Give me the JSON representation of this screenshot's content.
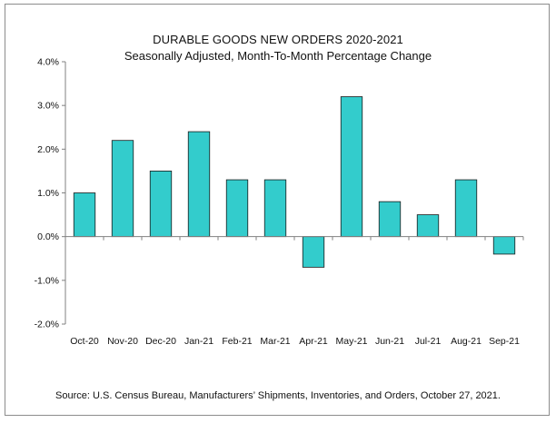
{
  "chart_data": {
    "type": "bar",
    "title": "DURABLE GOODS NEW ORDERS 2020-2021",
    "subtitle": "Seasonally Adjusted,  Month-To-Month Percentage Change",
    "categories": [
      "Oct-20",
      "Nov-20",
      "Dec-20",
      "Jan-21",
      "Feb-21",
      "Mar-21",
      "Apr-21",
      "May-21",
      "Jun-21",
      "Jul-21",
      "Aug-21",
      "Sep-21"
    ],
    "values": [
      1.0,
      2.2,
      1.5,
      2.4,
      1.3,
      1.3,
      -0.7,
      3.2,
      0.8,
      0.5,
      1.3,
      -0.4
    ],
    "ylim": [
      -2.0,
      4.0
    ],
    "yticks": [
      4.0,
      3.0,
      2.0,
      1.0,
      0.0,
      -1.0,
      -2.0
    ],
    "ytick_labels": [
      "4.0%",
      "3.0%",
      "2.0%",
      "1.0%",
      "0.0%",
      "-1.0%",
      "-2.0%"
    ],
    "xlabel": "",
    "ylabel": "",
    "grid": false,
    "bar_color": "#33cccc",
    "bar_edge_color": "#1a1a1a",
    "source": "Source: U.S. Census Bureau, Manufacturers’ Shipments, Inventories, and Orders, October 27, 2021."
  }
}
